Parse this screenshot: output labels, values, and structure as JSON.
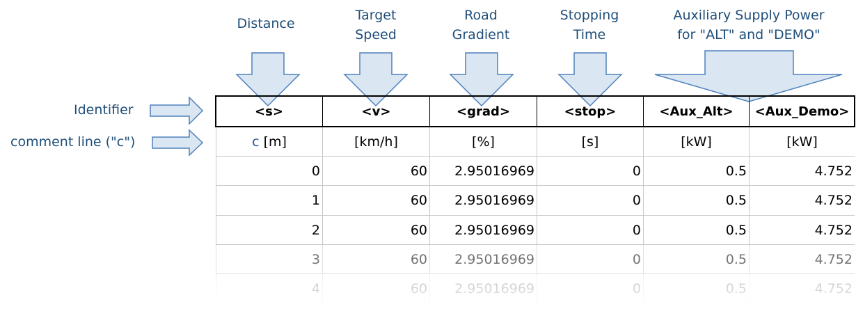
{
  "annotations": {
    "distance": "Distance",
    "target_speed": "Target\nSpeed",
    "road_gradient": "Road\nGradient",
    "stopping_time": "Stopping\nTime",
    "aux_power": "Auxiliary Supply Power\nfor \"ALT\" and \"DEMO\""
  },
  "side_labels": {
    "identifier": "Identifier",
    "comment_line": "comment line (\"c\")"
  },
  "table": {
    "headers": [
      "<s>",
      "<v>",
      "<grad>",
      "<stop>",
      "<Aux_Alt>",
      "<Aux_Demo>"
    ],
    "comment_char": "c",
    "units": [
      "[m]",
      "[km/h]",
      "[%]",
      "[s]",
      "[kW]",
      "[kW]"
    ],
    "rows": [
      [
        "0",
        "60",
        "2.95016969",
        "0",
        "0.5",
        "4.752"
      ],
      [
        "1",
        "60",
        "2.95016969",
        "0",
        "0.5",
        "4.752"
      ],
      [
        "2",
        "60",
        "2.95016969",
        "0",
        "0.5",
        "4.752"
      ],
      [
        "3",
        "60",
        "2.95016969",
        "0",
        "0.5",
        "4.752"
      ],
      [
        "4",
        "60",
        "2.95016969",
        "0",
        "0.5",
        "4.752"
      ]
    ]
  },
  "colors": {
    "arrow_fill": "#dae6f2",
    "arrow_stroke": "#4f81bd",
    "annotation_text": "#1f4e79"
  }
}
